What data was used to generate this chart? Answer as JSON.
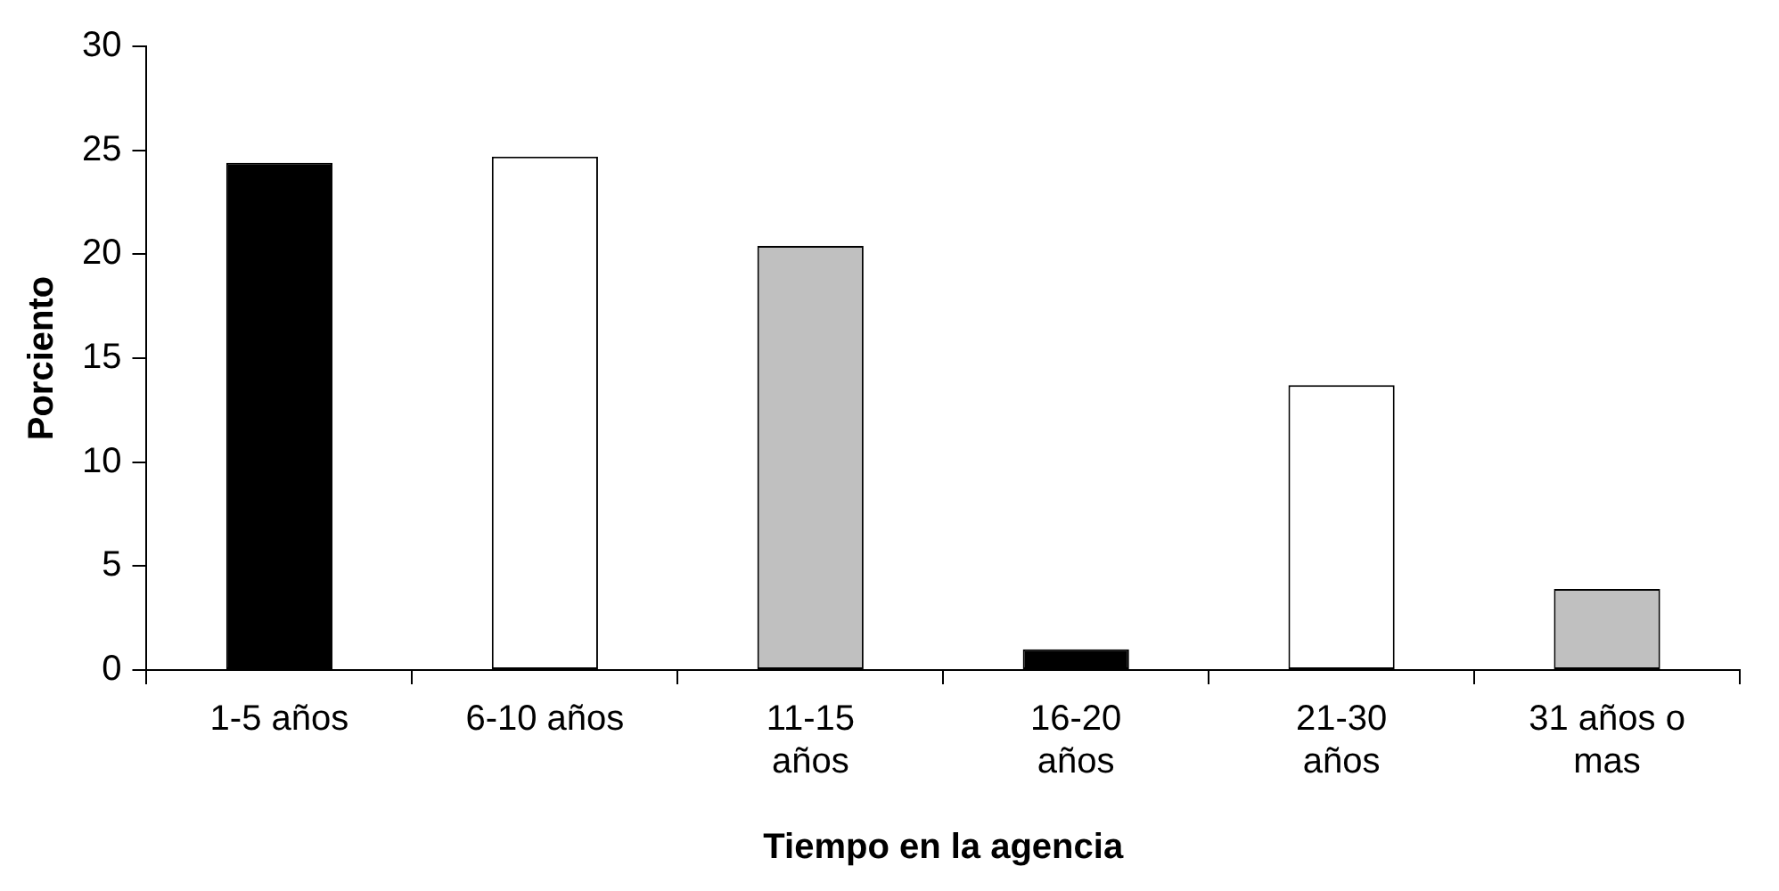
{
  "chart_data": {
    "type": "bar",
    "xlabel": "Tiempo en la agencia",
    "ylabel": "Porciento",
    "categories": [
      "1-5 años",
      "6-10 años",
      "11-15 años",
      "16-20 años",
      "21-30 años",
      "31 años o mas"
    ],
    "values": [
      24.4,
      24.7,
      20.4,
      1.0,
      13.7,
      3.9
    ],
    "colors": [
      "#000000",
      "#ffffff",
      "#c0c0c0",
      "#000000",
      "#ffffff",
      "#c0c0c0"
    ],
    "ylim": [
      0,
      30
    ],
    "yticks": [
      0,
      5,
      10,
      15,
      20,
      25,
      30
    ],
    "grid": false,
    "legend": false
  }
}
